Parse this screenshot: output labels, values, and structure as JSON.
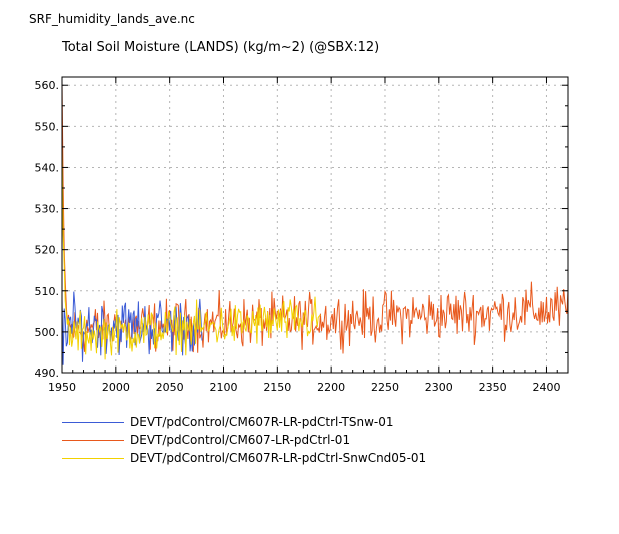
{
  "header": {
    "file_name": "SRF_humidity_lands_ave.nc"
  },
  "chart_data": {
    "type": "line",
    "title": "Total Soil Moisture (LANDS) (kg/m~2) (@SBX:12)",
    "xlabel": "",
    "ylabel": "",
    "xlim": [
      1950,
      2420
    ],
    "ylim": [
      490,
      562
    ],
    "x_ticks": [
      1950,
      2000,
      2050,
      2100,
      2150,
      2200,
      2250,
      2300,
      2350,
      2400
    ],
    "y_ticks": [
      "490.",
      "500.",
      "510.",
      "520.",
      "530.",
      "540.",
      "550.",
      "560."
    ],
    "grid": true,
    "legend_position": "bottom-left",
    "series": [
      {
        "name": "DEVT/pdControl/CM607R-LR-pdCtrl-TSnw-01",
        "color": "#3b5bd6",
        "x_start": 1950,
        "x_end": 2080,
        "start_value": 508,
        "min_start": 492,
        "mean": 501.5,
        "amplitude": 4.5
      },
      {
        "name": "DEVT/pdControl/CM607-LR-pdCtrl-01",
        "color": "#e8581c",
        "x_start": 1950,
        "x_end": 2420,
        "start_value": 561,
        "mean_start": 500.5,
        "mean_end": 505.5,
        "amplitude": 4
      },
      {
        "name": "DEVT/pdControl/CM607R-LR-pdCtrl-SnwCnd05-01",
        "color": "#f2d100",
        "x_start": 1950,
        "x_end": 2190,
        "start_value": 545,
        "mean_start": 499,
        "mean_end": 503,
        "amplitude": 3.5
      }
    ]
  }
}
